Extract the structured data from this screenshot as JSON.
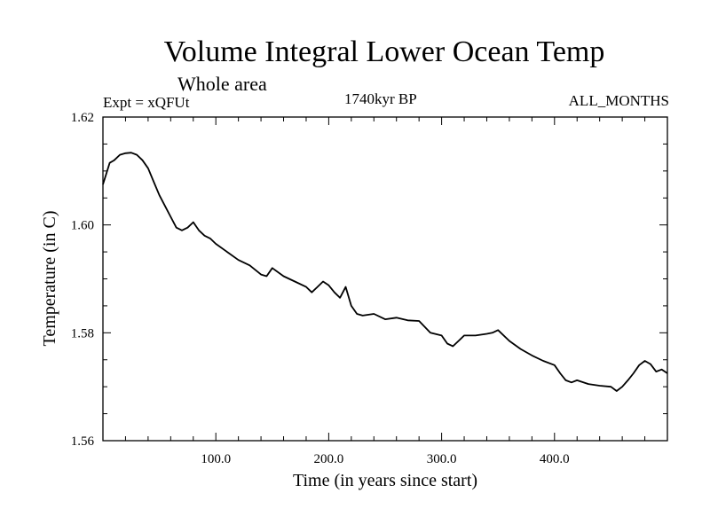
{
  "chart_data": {
    "type": "line",
    "title": "Volume Integral Lower Ocean Temp",
    "subtitle": "Whole area",
    "annotations": {
      "left": "Expt = xQFUt",
      "center": "1740kyr BP",
      "right": "ALL_MONTHS"
    },
    "xlabel": "Time (in years since start)",
    "ylabel": "Temperature (in C)",
    "xlim": [
      0,
      500
    ],
    "ylim": [
      1.56,
      1.62
    ],
    "x_ticks": [
      100,
      200,
      300,
      400
    ],
    "x_tick_labels": [
      "100.0",
      "200.0",
      "300.0",
      "400.0"
    ],
    "y_ticks": [
      1.56,
      1.58,
      1.6,
      1.62
    ],
    "y_tick_labels": [
      "1.56",
      "1.58",
      "1.60",
      "1.62"
    ],
    "series": [
      {
        "name": "Volume Integral Lower Ocean Temp",
        "x": [
          0,
          3,
          6,
          10,
          15,
          20,
          25,
          30,
          35,
          40,
          45,
          50,
          55,
          60,
          65,
          70,
          75,
          80,
          85,
          90,
          95,
          100,
          110,
          120,
          130,
          140,
          145,
          150,
          160,
          170,
          180,
          185,
          190,
          195,
          200,
          205,
          210,
          215,
          220,
          225,
          230,
          240,
          250,
          260,
          270,
          280,
          290,
          300,
          305,
          310,
          315,
          320,
          330,
          340,
          345,
          350,
          360,
          370,
          380,
          390,
          400,
          405,
          410,
          415,
          420,
          430,
          440,
          450,
          455,
          460,
          465,
          470,
          475,
          480,
          485,
          490,
          495,
          500
        ],
        "values": [
          1.6075,
          1.6095,
          1.6115,
          1.612,
          1.613,
          1.6133,
          1.6134,
          1.613,
          1.612,
          1.6105,
          1.608,
          1.6055,
          1.6035,
          1.6015,
          1.5995,
          1.599,
          1.5995,
          1.6005,
          1.599,
          1.598,
          1.5975,
          1.5965,
          1.595,
          1.5935,
          1.5925,
          1.5908,
          1.5905,
          1.592,
          1.5905,
          1.5895,
          1.5885,
          1.5875,
          1.5885,
          1.5895,
          1.5888,
          1.5875,
          1.5865,
          1.5885,
          1.585,
          1.5835,
          1.5832,
          1.5835,
          1.5825,
          1.5828,
          1.5823,
          1.5822,
          1.58,
          1.5795,
          1.578,
          1.5775,
          1.5785,
          1.5795,
          1.5795,
          1.5798,
          1.58,
          1.5805,
          1.5785,
          1.577,
          1.5758,
          1.5748,
          1.574,
          1.5725,
          1.5712,
          1.5708,
          1.5712,
          1.5705,
          1.5702,
          1.57,
          1.5692,
          1.57,
          1.5712,
          1.5725,
          1.574,
          1.5748,
          1.5742,
          1.5728,
          1.5732,
          1.5725
        ]
      }
    ],
    "grid": false,
    "line_color": "#000000"
  }
}
